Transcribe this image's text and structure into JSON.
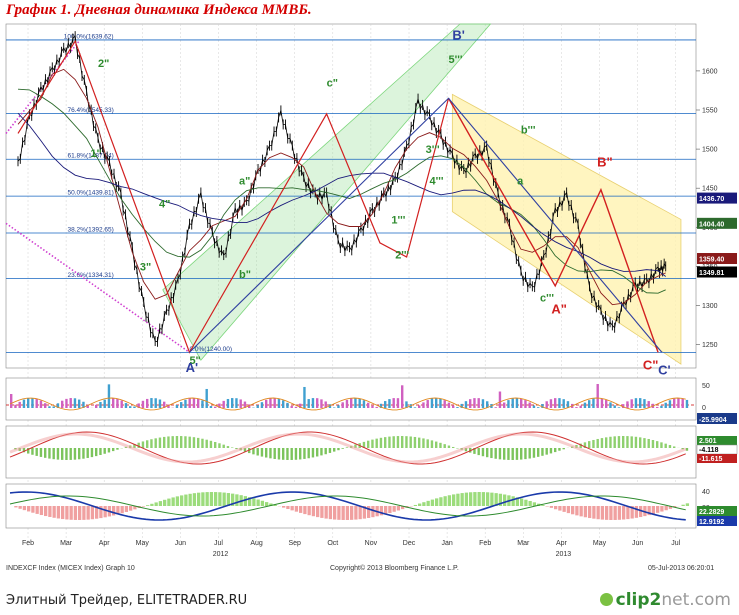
{
  "title": "График 1.   Дневная динамика Индекса ММВБ.",
  "footer": {
    "left": "INDEXCF Index (MICEX Index)  Graph 10",
    "center": "Copyright© 2013 Bloomberg Finance L.P.",
    "right": "05-Jul-2013 06:20:01"
  },
  "source_text": "Элитный Трейдер, ELITETRADER.RU",
  "brand": {
    "main": "clip2",
    "sub": "net.com"
  },
  "colors": {
    "title": "#d40000",
    "price": "#000000",
    "ma_fast": "#8a1a1a",
    "ma_slow": "#1a1a7a",
    "ma_mid": "#2d6a2d",
    "fib": "#1565c0",
    "green_channel": "#9be09b",
    "yellow_channel": "#fff2b0",
    "red_wave": "#d22020",
    "blue_wave": "#3040a0",
    "wave_green": "#2e8b2e"
  },
  "chart_data": [
    {
      "type": "line",
      "name": "price-panel",
      "x_tick_labels": [
        "Feb",
        "Mar",
        "Apr",
        "May",
        "Jun",
        "Jul",
        "Aug",
        "Sep",
        "Oct",
        "Nov",
        "Dec",
        "Jan",
        "Feb",
        "Mar",
        "Apr",
        "May",
        "Jun",
        "Jul"
      ],
      "year_labels": [
        {
          "label": "2012",
          "month_index": 5
        },
        {
          "label": "2013",
          "month_index": 14
        }
      ],
      "ylim": [
        1220,
        1660
      ],
      "y_ticks": [
        1250,
        1300,
        1350,
        1400,
        1450,
        1500,
        1550,
        1600
      ],
      "y_tick_labels": [
        "1250",
        "1300",
        "1350",
        "1400",
        "1450",
        "1500",
        "1550",
        "1600"
      ],
      "last_value_labels": [
        {
          "label": "1436.70",
          "value": 1436.7,
          "color": "#1a1a7a"
        },
        {
          "label": "1404.40",
          "value": 1404.4,
          "color": "#2d6a2d"
        },
        {
          "label": "1359.40",
          "value": 1359.4,
          "color": "#8a1a1a"
        },
        {
          "label": "1349.81",
          "value": 1349.81,
          "color": "#000000"
        }
      ],
      "fib_levels": [
        {
          "label": "100.0%(1639.62)",
          "value": 1639.62
        },
        {
          "label": "76.4%(1545.33)",
          "value": 1545.33
        },
        {
          "label": "61.8%(1487.04)",
          "value": 1487.04
        },
        {
          "label": "50.0%(1439.81)",
          "value": 1439.81
        },
        {
          "label": "38.2%(1392.65)",
          "value": 1392.65
        },
        {
          "label": "23.6%(1334.31)",
          "value": 1334.31
        },
        {
          "label": "0.0%(1240.00)",
          "value": 1240.0
        }
      ],
      "series": [
        {
          "name": "",
          "x": [
            0,
            0.3,
            0.6,
            0.9,
            1.2,
            1.5,
            1.8,
            2.1,
            2.4,
            2.7,
            3.0,
            3.3,
            3.6,
            3.9,
            4.2,
            4.5,
            4.8,
            5.1,
            5.4,
            5.7,
            6.0,
            6.3,
            6.6,
            6.9,
            7.2,
            7.5,
            7.8,
            8.1,
            8.4,
            8.7,
            9.0,
            9.3,
            9.6,
            9.9,
            10.2,
            10.5,
            10.8,
            11.1,
            11.4,
            11.7,
            12.0,
            12.3,
            12.6,
            12.9,
            13.2,
            13.5,
            13.8,
            14.1,
            14.4,
            14.7,
            15.0,
            15.3,
            15.6,
            15.9,
            16.2,
            16.5,
            16.8,
            17.0
          ],
          "values": [
            1480,
            1540,
            1575,
            1600,
            1625,
            1640,
            1570,
            1510,
            1480,
            1440,
            1370,
            1300,
            1250,
            1290,
            1330,
            1400,
            1440,
            1390,
            1360,
            1420,
            1430,
            1470,
            1500,
            1545,
            1500,
            1460,
            1440,
            1440,
            1380,
            1370,
            1395,
            1420,
            1440,
            1460,
            1500,
            1560,
            1540,
            1515,
            1490,
            1470,
            1490,
            1500,
            1440,
            1400,
            1340,
            1320,
            1360,
            1420,
            1440,
            1400,
            1320,
            1290,
            1270,
            1300,
            1325,
            1330,
            1345,
            1350
          ]
        }
      ],
      "wave_labels": [
        {
          "label": "2\"",
          "color": "#2e8b2e"
        },
        {
          "label": "1\"",
          "color": "#2e8b2e"
        },
        {
          "label": "3\"",
          "color": "#2e8b2e"
        },
        {
          "label": "4\"",
          "color": "#2e8b2e"
        },
        {
          "label": "5\"",
          "color": "#2e8b2e"
        },
        {
          "label": "A'",
          "color": "#3040a0"
        },
        {
          "label": "a\"",
          "color": "#2e8b2e"
        },
        {
          "label": "b\"",
          "color": "#2e8b2e"
        },
        {
          "label": "c\"",
          "color": "#2e8b2e"
        },
        {
          "label": "1'''",
          "color": "#2e8b2e"
        },
        {
          "label": "2'''",
          "color": "#2e8b2e"
        },
        {
          "label": "3'''",
          "color": "#2e8b2e"
        },
        {
          "label": "4'''",
          "color": "#2e8b2e"
        },
        {
          "label": "5'''",
          "color": "#2e8b2e"
        },
        {
          "label": "B'",
          "color": "#3040a0"
        },
        {
          "label": "a",
          "color": "#2e8b2e"
        },
        {
          "label": "b'''",
          "color": "#2e8b2e"
        },
        {
          "label": "c'''",
          "color": "#2e8b2e"
        },
        {
          "label": "A\"",
          "color": "#d22020"
        },
        {
          "label": "B\"",
          "color": "#d22020"
        },
        {
          "label": "C\"",
          "color": "#d22020"
        },
        {
          "label": "C'",
          "color": "#3040a0"
        }
      ]
    },
    {
      "type": "bar",
      "name": "oscillator-panel-1",
      "ylim": [
        -40,
        60
      ],
      "y_tick_labels": [
        "50",
        "0"
      ],
      "last_value_labels": [
        {
          "label": "-25.9904",
          "value": -25.9904
        }
      ]
    },
    {
      "type": "area",
      "name": "oscillator-panel-2",
      "last_value_labels": [
        {
          "label": "2.501",
          "value": 2.501
        },
        {
          "label": "-4.118",
          "value": -4.118
        },
        {
          "label": "-11.615",
          "value": -11.615
        }
      ]
    },
    {
      "type": "area",
      "name": "oscillator-panel-3",
      "y_tick_labels": [
        "40",
        "20"
      ],
      "last_value_labels": [
        {
          "label": "22.2829",
          "value": 22.2829
        },
        {
          "label": "12.9192",
          "value": 12.9192
        }
      ]
    }
  ]
}
